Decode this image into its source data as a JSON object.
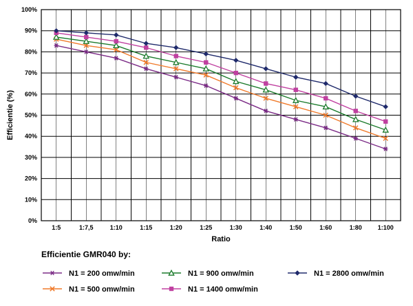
{
  "chart_data": {
    "type": "line",
    "xlabel": "Ratio",
    "ylabel": "Efficientie (%)",
    "categories": [
      "1:5",
      "1:7,5",
      "1:10",
      "1:15",
      "1:20",
      "1:25",
      "1:30",
      "1:40",
      "1:50",
      "1:60",
      "1:80",
      "1:100"
    ],
    "ylim": [
      0,
      100
    ],
    "yticks": [
      "0%",
      "10%",
      "20%",
      "30%",
      "40%",
      "50%",
      "60%",
      "70%",
      "80%",
      "90%",
      "100%"
    ],
    "grid": true,
    "legend_title": "Efficientie GMR040 by:",
    "legend_position": "bottom",
    "series": [
      {
        "name": "N1 = 200 omw/min",
        "marker": "asterisk",
        "color": "#7b2b86",
        "values": [
          83,
          80,
          77,
          72,
          68,
          64,
          58,
          52,
          48,
          44,
          39,
          34
        ]
      },
      {
        "name": "N1 = 500 omw/min",
        "marker": "x",
        "color": "#f07a2a",
        "values": [
          86,
          83,
          81,
          75,
          72,
          69,
          63,
          58,
          54,
          50,
          44,
          39
        ]
      },
      {
        "name": "N1 = 900 omw/min",
        "marker": "triangle",
        "color": "#1a7a2a",
        "values": [
          87,
          85,
          83,
          78,
          75,
          72,
          66,
          62,
          57,
          54,
          48,
          43
        ]
      },
      {
        "name": "N1 = 1400 omw/min",
        "marker": "square",
        "color": "#c040a0",
        "values": [
          89,
          87,
          85,
          82,
          78,
          75,
          70,
          65,
          62,
          58,
          52,
          47
        ]
      },
      {
        "name": "N1 = 2800 omw/min",
        "marker": "diamond",
        "color": "#1f2a6b",
        "values": [
          90,
          89,
          88,
          84,
          82,
          79,
          76,
          72,
          68,
          65,
          59,
          54
        ]
      }
    ]
  }
}
